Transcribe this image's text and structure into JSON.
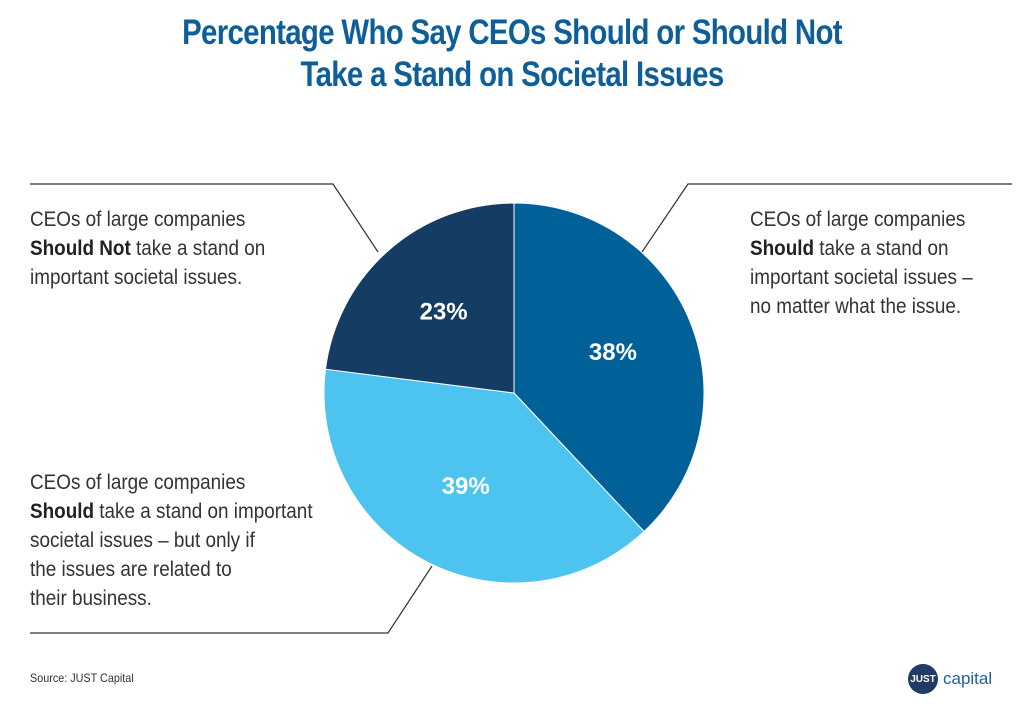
{
  "title_lines": [
    "Percentage Who Say CEOs Should or Should Not",
    "Take a Stand on Societal Issues"
  ],
  "chart_data": {
    "type": "pie",
    "title": "Percentage Who Say CEOs Should or Should Not Take a Stand on Societal Issues",
    "unit": "%",
    "slices": [
      {
        "value": 38,
        "label": "38%",
        "color": "#006199",
        "legend": {
          "line1": "CEOs of large companies",
          "bold": "Should",
          "rest": " take a stand on",
          "lines": [
            "important societal issues –",
            "no matter what the issue."
          ]
        }
      },
      {
        "value": 39,
        "label": "39%",
        "color": "#4cc4ef",
        "legend": {
          "line1": "CEOs of large companies",
          "bold": "Should",
          "rest": " take a stand on important",
          "lines": [
            "societal issues – but only if",
            "the issues are related to",
            "their business."
          ]
        }
      },
      {
        "value": 23,
        "label": "23%",
        "color": "#153d63",
        "legend": {
          "line1": "CEOs of large companies",
          "bold": "Should Not",
          "rest": " take a stand on",
          "lines": [
            "important societal issues."
          ]
        }
      }
    ]
  },
  "footer": {
    "source": "Source: JUST Capital"
  },
  "logo": {
    "badge": "JUST",
    "word": "capital"
  }
}
